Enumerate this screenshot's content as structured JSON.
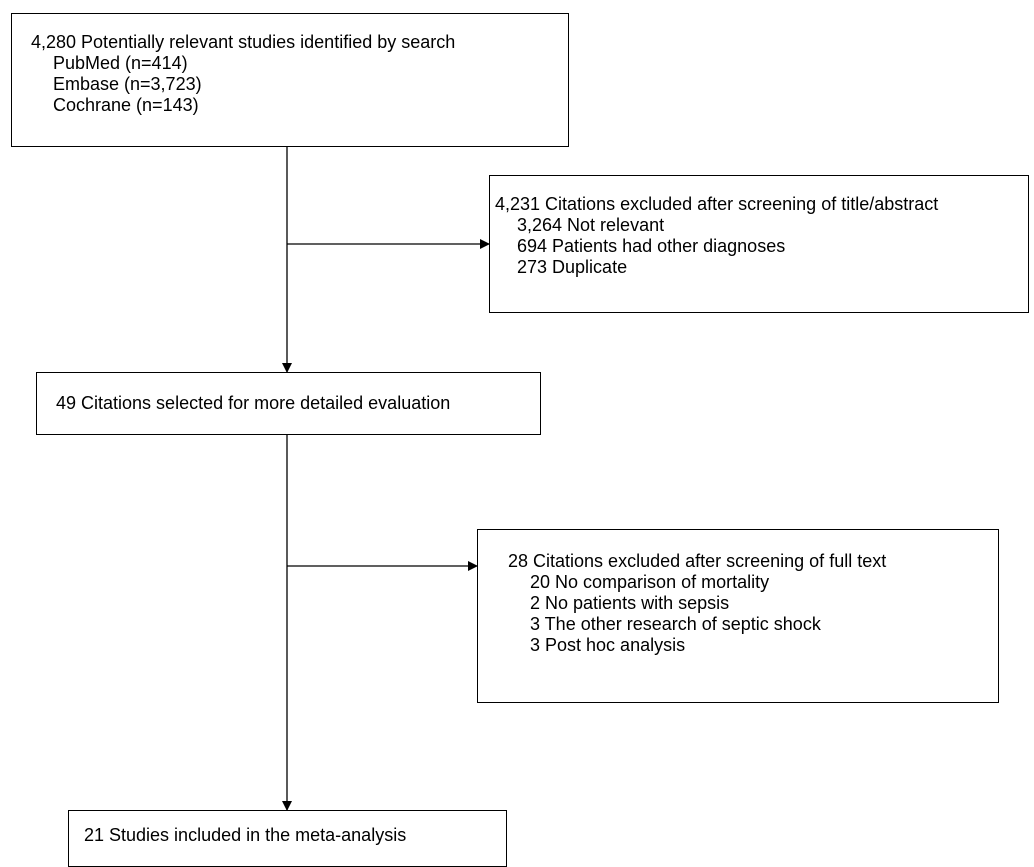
{
  "search": {
    "heading": "4,280 Potentially relevant studies identified by search",
    "items": [
      "PubMed (n=414)",
      "Embase (n=3,723)",
      "Cochrane (n=143)"
    ]
  },
  "exclusion1": {
    "heading": "4,231 Citations excluded after screening of title/abstract",
    "items": [
      "3,264 Not relevant",
      "694 Patients had other diagnoses",
      "273 Duplicate"
    ]
  },
  "selected": {
    "heading": "49 Citations selected for more detailed evaluation"
  },
  "exclusion2": {
    "heading": "28 Citations excluded after screening of full text",
    "items": [
      "20 No comparison of mortality",
      "2 No patients with sepsis",
      "3 The other research of septic shock",
      "3 Post hoc analysis"
    ]
  },
  "included": {
    "heading": "21 Studies included in the meta-analysis"
  }
}
